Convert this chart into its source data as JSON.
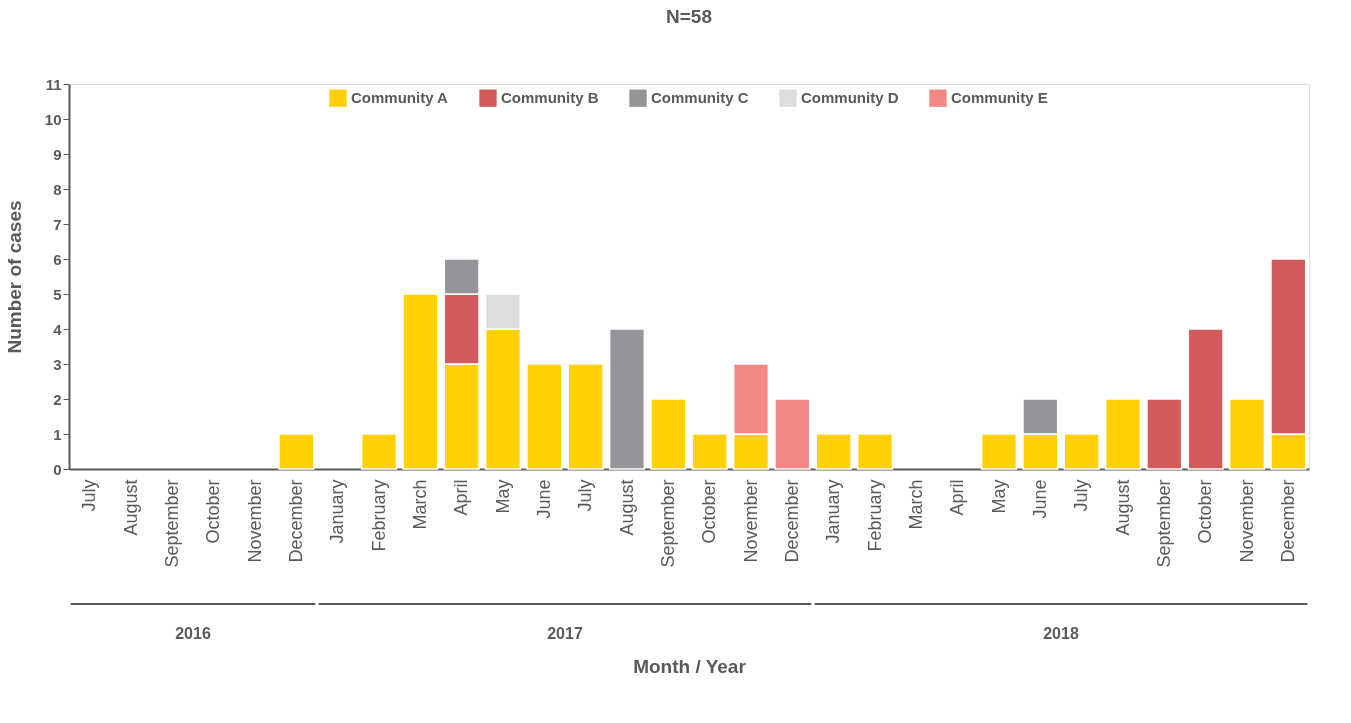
{
  "chart_data": {
    "type": "bar",
    "title": "N=58",
    "xlabel": "Month / Year",
    "ylabel": "Number of cases",
    "stacked": true,
    "legend": "top",
    "grid": false,
    "categories": [
      "July",
      "August",
      "September",
      "October",
      "November",
      "December",
      "January",
      "February",
      "March",
      "April",
      "May",
      "June",
      "July",
      "August",
      "September",
      "October",
      "November",
      "December",
      "January",
      "February",
      "March",
      "April",
      "May",
      "June",
      "July",
      "August",
      "September",
      "October",
      "November",
      "December"
    ],
    "annotations": [
      "2016",
      "2017",
      "2018"
    ],
    "ylim": [
      0,
      11
    ],
    "yticks": [
      0,
      1,
      2,
      3,
      4,
      5,
      6,
      7,
      8,
      9,
      10,
      11
    ],
    "series": [
      {
        "name": "Community A",
        "color": "#ffd105",
        "values": [
          null,
          null,
          null,
          null,
          null,
          1,
          null,
          1,
          5,
          3,
          4,
          3,
          3,
          null,
          2,
          1,
          1,
          null,
          1,
          1,
          null,
          null,
          1,
          1,
          1,
          2,
          null,
          null,
          2,
          1
        ]
      },
      {
        "name": "Community B",
        "color": "#d35a5a",
        "values": [
          null,
          null,
          null,
          null,
          null,
          null,
          null,
          null,
          null,
          2,
          null,
          null,
          null,
          null,
          null,
          null,
          null,
          null,
          null,
          null,
          null,
          null,
          null,
          null,
          null,
          null,
          2,
          4,
          null,
          5
        ]
      },
      {
        "name": "Community C",
        "color": "#939598",
        "values": [
          null,
          null,
          null,
          null,
          null,
          null,
          null,
          null,
          null,
          1,
          null,
          null,
          null,
          4,
          null,
          null,
          null,
          null,
          null,
          null,
          null,
          null,
          null,
          1,
          null,
          null,
          null,
          null,
          null,
          null
        ]
      },
      {
        "name": "Community D",
        "color": "#dcdddf",
        "values": [
          null,
          null,
          null,
          null,
          null,
          null,
          null,
          null,
          null,
          null,
          1,
          null,
          null,
          null,
          null,
          null,
          null,
          null,
          null,
          null,
          null,
          null,
          null,
          null,
          null,
          null,
          null,
          null,
          null,
          null
        ]
      },
      {
        "name": "Community E",
        "color": "#f28783",
        "values": [
          null,
          null,
          null,
          null,
          null,
          null,
          null,
          null,
          null,
          null,
          null,
          null,
          null,
          null,
          null,
          null,
          2,
          2,
          null,
          null,
          null,
          null,
          null,
          null,
          null,
          null,
          null,
          null,
          null,
          null
        ]
      }
    ]
  }
}
